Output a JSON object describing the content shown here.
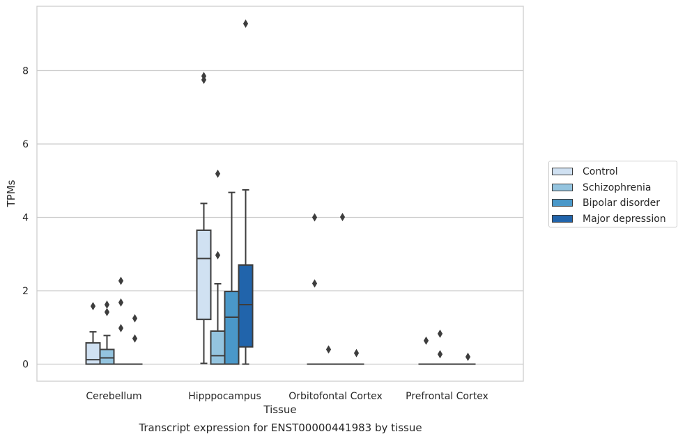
{
  "chart_data": {
    "type": "box",
    "title": "",
    "caption": "Transcript expression for ENST00000441983 by tissue",
    "xlabel": "Tissue",
    "ylabel": "TPMs",
    "ylim": [
      -0.45,
      9.7
    ],
    "yticks": [
      0,
      2,
      4,
      6,
      8
    ],
    "grid": "horizontal",
    "legend_position": "right",
    "categories": [
      "Cerebellum",
      "Hipppocampus",
      "Orbitofontal Cortex",
      "Prefrontal Cortex"
    ],
    "series": [
      {
        "name": "Control",
        "color": "#d0e1f2",
        "boxes": [
          {
            "min": 0,
            "q1": 0,
            "median": 0.12,
            "q3": 0.58,
            "max": 0.88,
            "outliers": [
              1.58
            ]
          },
          {
            "min": 0.02,
            "q1": 1.22,
            "median": 2.88,
            "q3": 3.65,
            "max": 4.38,
            "outliers": [
              7.75,
              7.85
            ]
          },
          {
            "min": 0,
            "q1": 0,
            "median": 0,
            "q3": 0,
            "max": 0,
            "outliers": [
              2.2,
              4.0
            ]
          },
          {
            "min": 0,
            "q1": 0,
            "median": 0,
            "q3": 0,
            "max": 0,
            "outliers": [
              0.64
            ]
          }
        ]
      },
      {
        "name": "Schizophrenia",
        "color": "#94c4df",
        "boxes": [
          {
            "min": 0,
            "q1": 0,
            "median": 0.17,
            "q3": 0.4,
            "max": 0.78,
            "outliers": [
              1.42,
              1.62
            ]
          },
          {
            "min": 0,
            "q1": 0,
            "median": 0.23,
            "q3": 0.9,
            "max": 2.19,
            "outliers": [
              2.97,
              5.19
            ]
          },
          {
            "min": 0,
            "q1": 0,
            "median": 0,
            "q3": 0,
            "max": 0,
            "outliers": [
              0.4
            ]
          },
          {
            "min": 0,
            "q1": 0,
            "median": 0,
            "q3": 0,
            "max": 0,
            "outliers": [
              0.27,
              0.83
            ]
          }
        ]
      },
      {
        "name": "Bipolar disorder",
        "color": "#4a98c9",
        "boxes": [
          {
            "min": 0,
            "q1": 0,
            "median": 0,
            "q3": 0,
            "max": 0,
            "outliers": [
              0.98,
              1.68,
              2.27
            ]
          },
          {
            "min": 0,
            "q1": 0,
            "median": 1.28,
            "q3": 1.98,
            "max": 4.68,
            "outliers": []
          },
          {
            "min": 0,
            "q1": 0,
            "median": 0,
            "q3": 0,
            "max": 0,
            "outliers": [
              4.01
            ]
          },
          {
            "min": 0,
            "q1": 0,
            "median": 0,
            "q3": 0,
            "max": 0,
            "outliers": []
          }
        ]
      },
      {
        "name": "Major depression",
        "color": "#2164ab",
        "boxes": [
          {
            "min": 0,
            "q1": 0,
            "median": 0,
            "q3": 0,
            "max": 0,
            "outliers": [
              0.7,
              1.25
            ]
          },
          {
            "min": 0,
            "q1": 0.47,
            "median": 1.62,
            "q3": 2.7,
            "max": 4.75,
            "outliers": [
              9.28
            ]
          },
          {
            "min": 0,
            "q1": 0,
            "median": 0,
            "q3": 0,
            "max": 0,
            "outliers": [
              0.3
            ]
          },
          {
            "min": 0,
            "q1": 0,
            "median": 0,
            "q3": 0,
            "max": 0,
            "outliers": [
              0.2
            ]
          }
        ]
      }
    ]
  }
}
